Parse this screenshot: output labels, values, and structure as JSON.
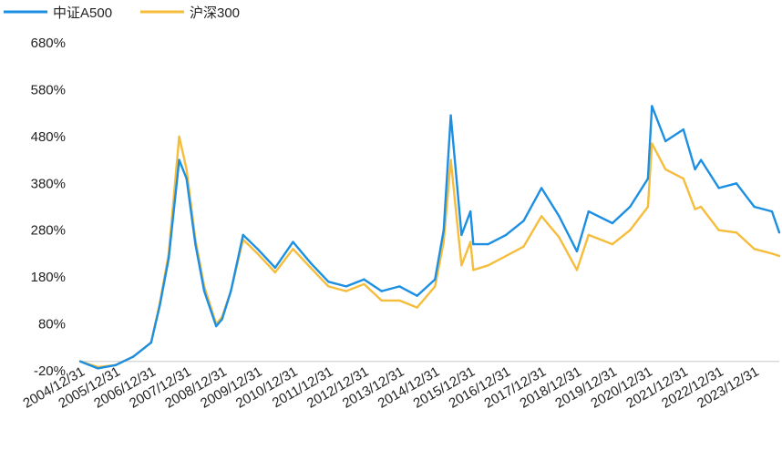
{
  "chart_data": {
    "type": "line",
    "title": "",
    "xlabel": "",
    "ylabel": "",
    "ylim": [
      -20,
      680
    ],
    "grid": false,
    "legend_position": "top-left",
    "y_ticks": [
      "680%",
      "580%",
      "480%",
      "380%",
      "280%",
      "180%",
      "80%",
      "-20%"
    ],
    "x_ticks": [
      "2004/12/31",
      "2005/12/31",
      "2006/12/31",
      "2007/12/31",
      "2008/12/31",
      "2009/12/31",
      "2010/12/31",
      "2011/12/31",
      "2012/12/31",
      "2013/12/31",
      "2014/12/31",
      "2015/12/31",
      "2016/12/31",
      "2017/12/31",
      "2018/12/31",
      "2019/12/31",
      "2020/12/31",
      "2021/12/31",
      "2022/12/31",
      "2023/12/31"
    ],
    "x": [
      "2004/12/31",
      "2005/06/30",
      "2005/12/31",
      "2006/06/30",
      "2006/12/31",
      "2007/03/31",
      "2007/06/30",
      "2007/10/16",
      "2007/12/31",
      "2008/03/31",
      "2008/06/30",
      "2008/10/31",
      "2008/12/31",
      "2009/03/31",
      "2009/08/04",
      "2009/12/31",
      "2010/06/30",
      "2010/12/31",
      "2011/06/30",
      "2011/12/31",
      "2012/06/30",
      "2012/12/31",
      "2013/06/30",
      "2013/12/31",
      "2014/06/30",
      "2014/12/31",
      "2015/03/31",
      "2015/06/12",
      "2015/09/30",
      "2015/12/31",
      "2016/01/29",
      "2016/06/30",
      "2016/12/31",
      "2017/06/30",
      "2017/12/31",
      "2018/06/30",
      "2018/12/31",
      "2019/04/30",
      "2019/12/31",
      "2020/06/30",
      "2020/12/31",
      "2021/02/10",
      "2021/06/30",
      "2021/12/31",
      "2022/04/30",
      "2022/06/30",
      "2022/12/31",
      "2023/06/30",
      "2023/12/31",
      "2024/06/30",
      "2024/09/13"
    ],
    "series": [
      {
        "name": "中证A500",
        "color": "#1c8fe3",
        "values": [
          0,
          -15,
          -8,
          10,
          40,
          120,
          220,
          430,
          390,
          250,
          150,
          75,
          90,
          150,
          270,
          240,
          200,
          255,
          210,
          170,
          160,
          175,
          150,
          160,
          140,
          175,
          280,
          525,
          270,
          320,
          250,
          250,
          270,
          300,
          370,
          310,
          235,
          320,
          295,
          330,
          390,
          545,
          470,
          495,
          410,
          430,
          370,
          380,
          330,
          320,
          275
        ]
      },
      {
        "name": "沪深300",
        "color": "#f5bd3b",
        "values": [
          0,
          -12,
          -8,
          10,
          40,
          125,
          230,
          480,
          410,
          260,
          160,
          80,
          95,
          150,
          260,
          230,
          190,
          240,
          200,
          160,
          150,
          165,
          130,
          130,
          115,
          160,
          255,
          430,
          205,
          255,
          195,
          205,
          225,
          245,
          310,
          265,
          195,
          270,
          250,
          280,
          330,
          465,
          410,
          390,
          325,
          330,
          280,
          275,
          240,
          230,
          225
        ]
      }
    ]
  }
}
